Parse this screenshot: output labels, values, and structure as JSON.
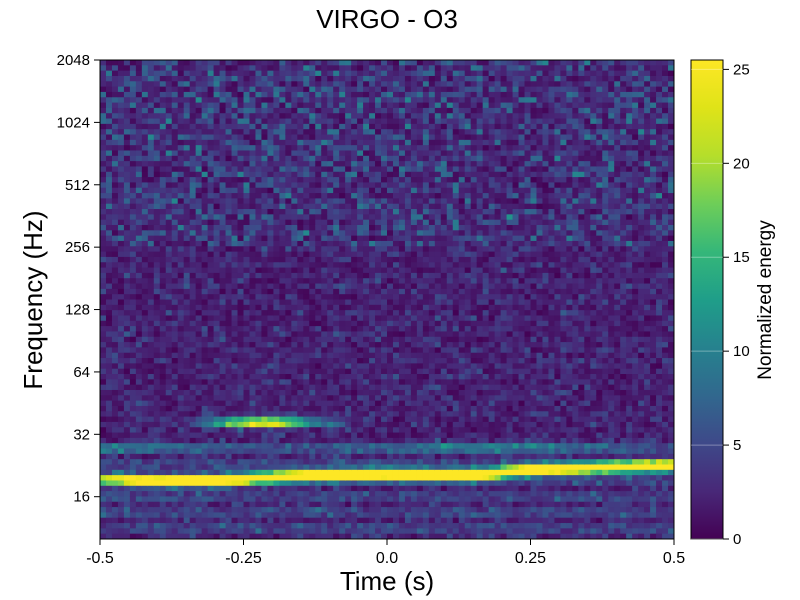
{
  "chart_data": {
    "type": "heatmap",
    "title": "VIRGO - O3",
    "xlabel": "Time (s)",
    "ylabel": "Frequency (Hz)",
    "xlim": [
      -0.5,
      0.5
    ],
    "x_ticks": [
      "-0.5",
      "-0.25",
      "0.0",
      "0.25",
      "0.5"
    ],
    "x_tick_values": [
      -0.5,
      -0.25,
      0.0,
      0.25,
      0.5
    ],
    "ylim": [
      10,
      2048
    ],
    "y_scale": "log2",
    "y_ticks": [
      "16",
      "32",
      "64",
      "128",
      "256",
      "512",
      "1024",
      "2048"
    ],
    "y_tick_values": [
      16,
      32,
      64,
      128,
      256,
      512,
      1024,
      2048
    ],
    "colormap": "viridis",
    "colorbar": {
      "label": "Normalized energy",
      "range": [
        0,
        25.5
      ],
      "ticks": [
        "0",
        "5",
        "10",
        "15",
        "20",
        "25"
      ],
      "tick_values": [
        0,
        5,
        10,
        15,
        20,
        25
      ]
    },
    "features": [
      {
        "kind": "track",
        "t": [
          -0.5,
          -0.4,
          -0.3,
          -0.15,
          0.0,
          0.15,
          0.25,
          0.35,
          0.5
        ],
        "f": [
          19.5,
          19.0,
          19.2,
          20.2,
          20.5,
          20.3,
          21.5,
          22.0,
          22.5
        ],
        "peak_energy": 25.5
      },
      {
        "kind": "blob",
        "t": [
          -0.33,
          -0.1
        ],
        "f": [
          34,
          39
        ],
        "peak_energy": 24
      }
    ]
  }
}
